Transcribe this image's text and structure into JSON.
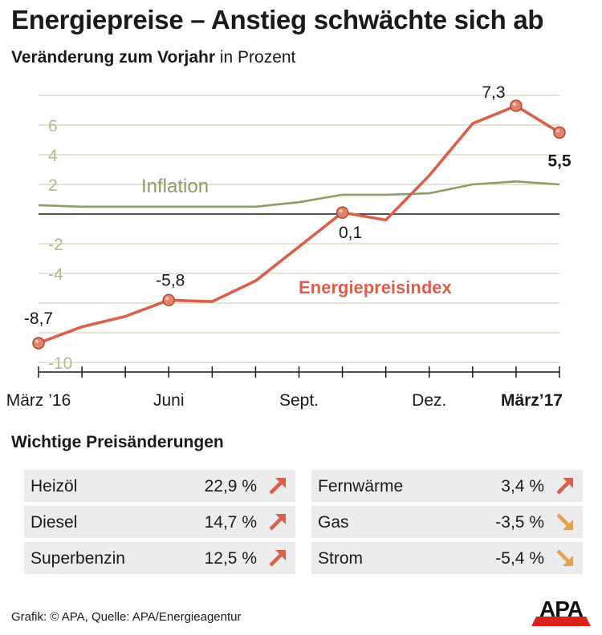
{
  "header": {
    "title": "Energiepreise – Anstieg schwächte sich ab",
    "subtitle_bold": "Veränderung zum Vorjahr",
    "subtitle_rest": " in Prozent"
  },
  "colors": {
    "energy": "#d9604a",
    "inflation": "#8a9e65",
    "grid": "#d8d3b8",
    "ytick": "#bdb48c",
    "marker": "#e4836c",
    "arrow_up": "#d9604a",
    "arrow_down": "#e8a04c"
  },
  "chart_data": {
    "type": "line",
    "title": "Energiepreise – Anstieg schwächte sich ab",
    "ylabel": "Veränderung zum Vorjahr in Prozent",
    "ylim": [
      -10.5,
      8
    ],
    "yticks": [
      6,
      4,
      2,
      -2,
      -4,
      -10
    ],
    "ytick_labels": [
      "6",
      "4",
      "2",
      "-2",
      "-4",
      "-10"
    ],
    "grid": "horizontal",
    "x": [
      "2016-03",
      "2016-04",
      "2016-05",
      "2016-06",
      "2016-07",
      "2016-08",
      "2016-09",
      "2016-10",
      "2016-11",
      "2016-12",
      "2017-01",
      "2017-02",
      "2017-03"
    ],
    "x_tick_labels": [
      {
        "x": "2016-03",
        "label": "März ’16",
        "bold": false
      },
      {
        "x": "2016-06",
        "label": "Juni",
        "bold": false
      },
      {
        "x": "2016-09",
        "label": "Sept.",
        "bold": false
      },
      {
        "x": "2016-12",
        "label": "Dez.",
        "bold": false
      },
      {
        "x": "2017-03",
        "label": "März’17",
        "bold": true
      }
    ],
    "series": [
      {
        "name": "Energiepreisindex",
        "color": "#d9604a",
        "values": [
          -8.7,
          -7.6,
          -6.9,
          -5.8,
          -5.9,
          -4.5,
          -2.2,
          0.1,
          -0.4,
          2.6,
          6.1,
          7.3,
          5.5
        ],
        "markers": [
          {
            "x": "2016-03",
            "value": -8.7,
            "label": "-8,7",
            "bold": false
          },
          {
            "x": "2016-06",
            "value": -5.8,
            "label": "-5,8",
            "bold": false
          },
          {
            "x": "2016-10",
            "value": 0.1,
            "label": "0,1",
            "bold": false
          },
          {
            "x": "2017-02",
            "value": 7.3,
            "label": "7,3",
            "bold": false
          },
          {
            "x": "2017-03",
            "value": 5.5,
            "label": "5,5",
            "bold": true
          }
        ]
      },
      {
        "name": "Inflation",
        "color": "#8a9e65",
        "values": [
          0.6,
          0.5,
          0.5,
          0.5,
          0.5,
          0.5,
          0.8,
          1.3,
          1.3,
          1.4,
          2.0,
          2.2,
          2.0
        ]
      }
    ]
  },
  "price_changes": {
    "title": "Wichtige Preisänderungen",
    "items": [
      {
        "label": "Heizöl",
        "value": "22,9 %",
        "direction": "up",
        "icon": "arrow-up-right-icon"
      },
      {
        "label": "Diesel",
        "value": "14,7 %",
        "direction": "up",
        "icon": "arrow-up-right-icon"
      },
      {
        "label": "Superbenzin",
        "value": "12,5 %",
        "direction": "up",
        "icon": "arrow-up-right-icon"
      },
      {
        "label": "Fernwärme",
        "value": "3,4 %",
        "direction": "up",
        "icon": "arrow-up-right-icon"
      },
      {
        "label": "Gas",
        "value": "-3,5 %",
        "direction": "down",
        "icon": "arrow-down-right-icon"
      },
      {
        "label": "Strom",
        "value": "-5,4 %",
        "direction": "down",
        "icon": "arrow-down-right-icon"
      }
    ]
  },
  "footer": {
    "source": "Grafik: © APA, Quelle: APA/Energieagentur",
    "logo_text": "APA"
  }
}
